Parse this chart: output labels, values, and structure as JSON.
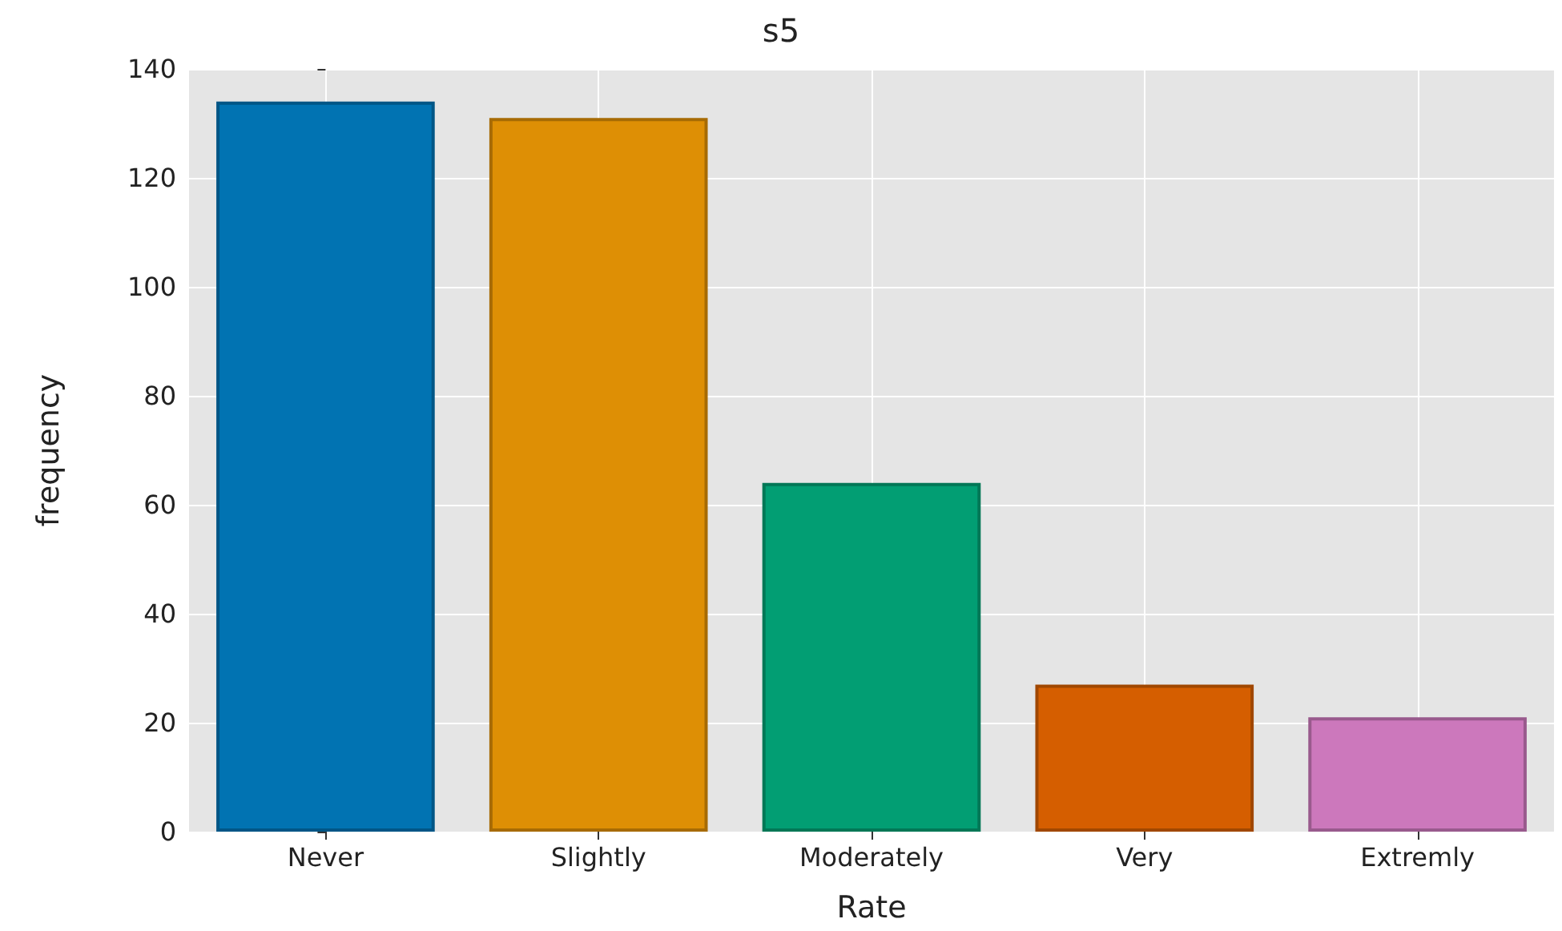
{
  "chart_data": {
    "type": "bar",
    "title": "s5",
    "xlabel": "Rate",
    "ylabel": "frequency",
    "categories": [
      "Never",
      "Slightly",
      "Moderately",
      "Very",
      "Extremly"
    ],
    "values": [
      134,
      131,
      64,
      27,
      21
    ],
    "colors": [
      "#0173b2",
      "#de8f05",
      "#029e73",
      "#d55e00",
      "#cc78bc"
    ],
    "ylim": [
      0,
      140
    ],
    "yticks": [
      0,
      20,
      40,
      60,
      80,
      100,
      120,
      140
    ],
    "grid": true
  }
}
